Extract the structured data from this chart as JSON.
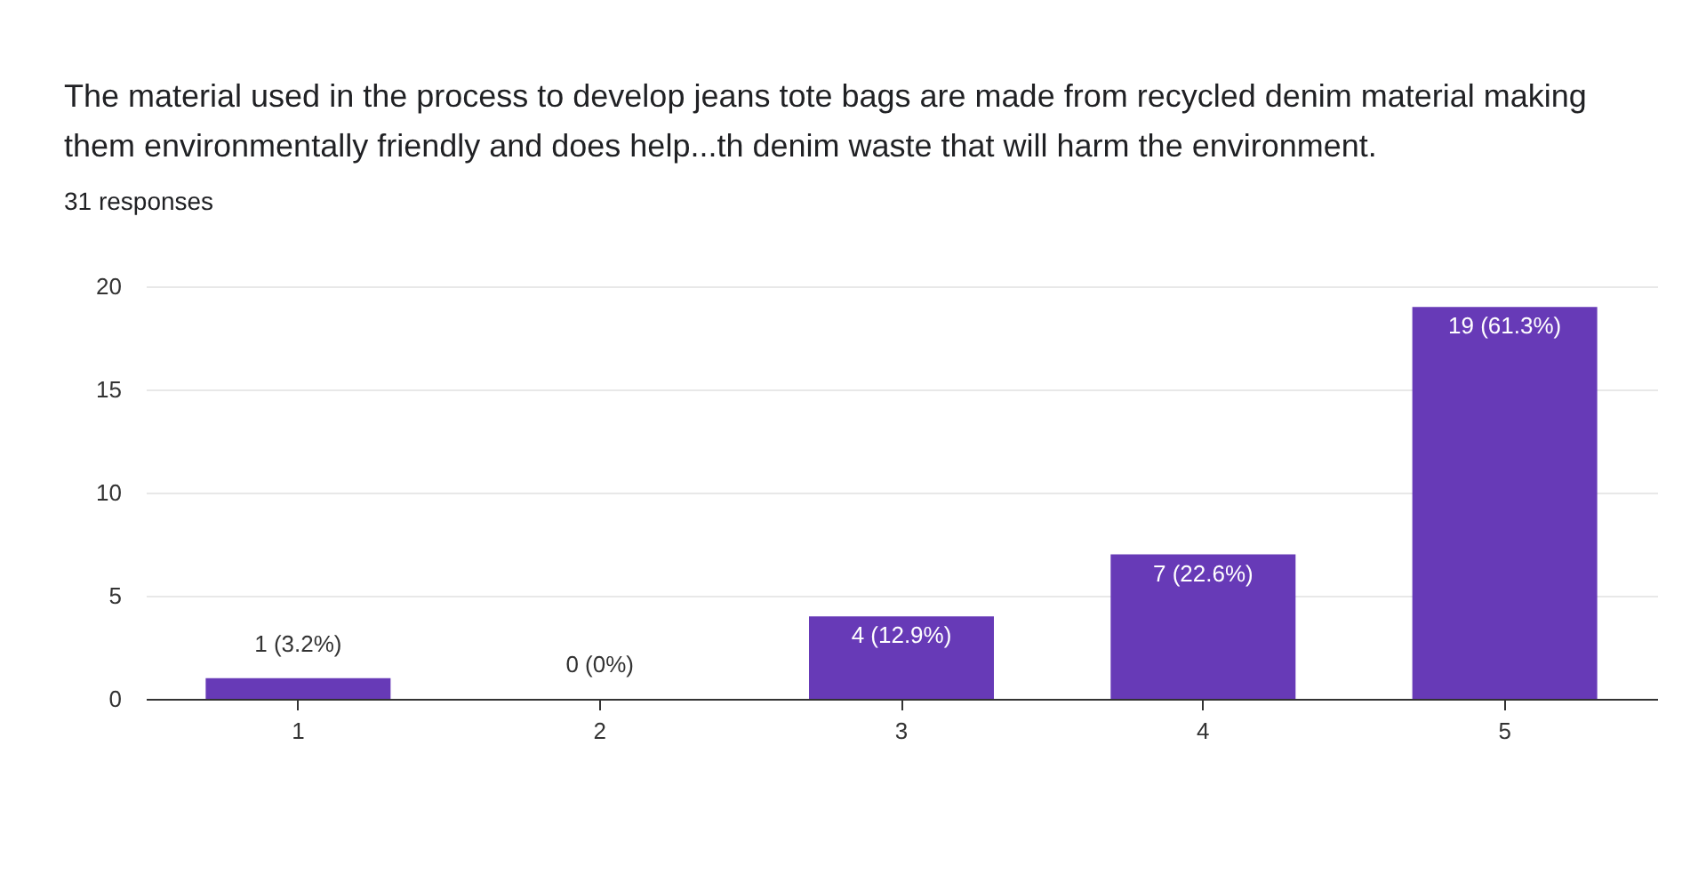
{
  "chart_data": {
    "type": "bar",
    "title": "The material used in the process to develop jeans tote bags are made from recycled denim material making them environmentally friendly and does help...th denim waste that will harm the environment.",
    "subtitle": "31 responses",
    "categories": [
      "1",
      "2",
      "3",
      "4",
      "5"
    ],
    "values": [
      1,
      0,
      4,
      7,
      19
    ],
    "value_labels": [
      "1 (3.2%)",
      "0 (0%)",
      "4 (12.9%)",
      "7 (22.6%)",
      "19 (61.3%)"
    ],
    "color": "#673ab7",
    "ylim": [
      0,
      20
    ],
    "yticks": [
      0,
      5,
      10,
      15,
      20
    ],
    "grid": true
  }
}
